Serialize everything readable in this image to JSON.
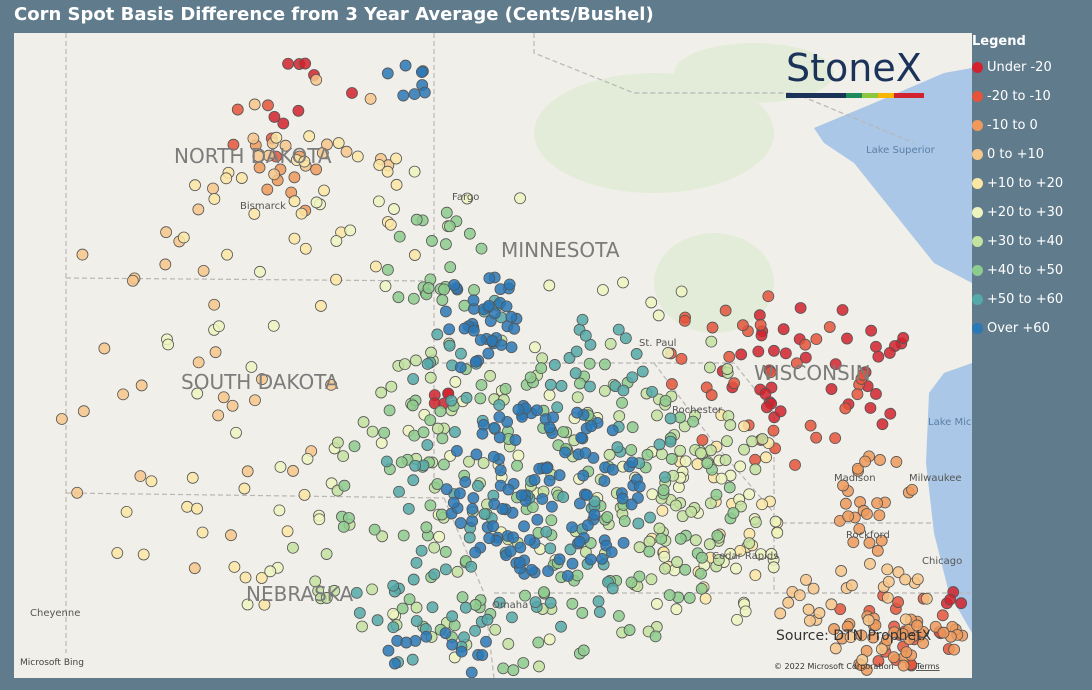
{
  "header": {
    "title": "Corn Spot Basis Difference from 3 Year Average (Cents/Bushel)"
  },
  "legend": {
    "title": "Legend",
    "items": [
      {
        "label": "Under -20",
        "color": "#d2222d"
      },
      {
        "label": "-20 to -10",
        "color": "#e4553b"
      },
      {
        "label": "-10 to 0",
        "color": "#ef9a5c"
      },
      {
        "label": "0 to +10",
        "color": "#f7c68a"
      },
      {
        "label": "+10 to +20",
        "color": "#fbe6a4"
      },
      {
        "label": "+20 to +30",
        "color": "#eef4bf"
      },
      {
        "label": "+30 to +40",
        "color": "#c4e2a0"
      },
      {
        "label": "+40 to +50",
        "color": "#8ecb8e"
      },
      {
        "label": "+50 to +60",
        "color": "#55a9a8"
      },
      {
        "label": "Over +60",
        "color": "#2a78b6"
      }
    ]
  },
  "map": {
    "states": [
      "NORTH DAKOTA",
      "MINNESOTA",
      "SOUTH DAKOTA",
      "WISCONSIN",
      "NEBRASKA"
    ],
    "cities": [
      "Bismarck",
      "Fargo",
      "St. Paul",
      "Rochester",
      "Madison",
      "Milwaukee",
      "Rockford",
      "Chicago",
      "Cedar Rapids",
      "Omaha",
      "Cheyenne"
    ],
    "lakes": [
      "Lake Superior",
      "Lake Michigan"
    ]
  },
  "logo": "StoneX",
  "source": "Source: DTN ProphetX",
  "attribution": {
    "provider": "Microsoft Bing",
    "copyright": "© 2022 Microsoft Corporation",
    "terms": "Terms"
  }
}
